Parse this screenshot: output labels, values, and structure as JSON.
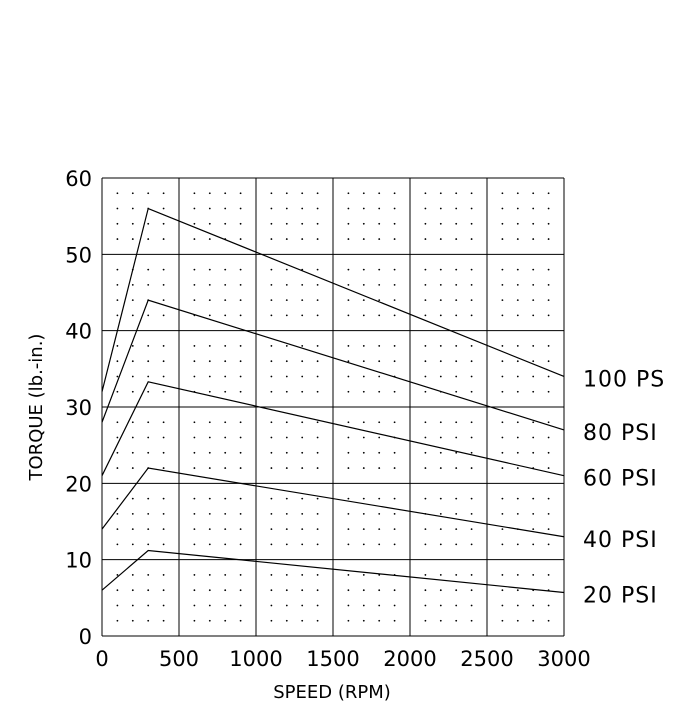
{
  "chart_data": {
    "type": "line",
    "title": "",
    "xlabel": "SPEED (RPM)",
    "ylabel": "TORQUE (lb.-in.)",
    "xlim": [
      0,
      3000
    ],
    "ylim": [
      0,
      60
    ],
    "xticks": [
      "0",
      "500",
      "1000",
      "1500",
      "2000",
      "2500",
      "3000"
    ],
    "yticks": [
      "0",
      "10",
      "20",
      "30",
      "40",
      "50",
      "60"
    ],
    "grid": true,
    "minor_grid": "dotted",
    "legend": "right-edge labels",
    "series": [
      {
        "name": "100 PS",
        "x": [
          0,
          300,
          3000
        ],
        "y": [
          32,
          56,
          34
        ]
      },
      {
        "name": "80 PSI",
        "x": [
          0,
          300,
          3000
        ],
        "y": [
          28,
          44,
          27
        ]
      },
      {
        "name": "60 PSI",
        "x": [
          0,
          300,
          3000
        ],
        "y": [
          21,
          33.3,
          21
        ]
      },
      {
        "name": "40 PSI",
        "x": [
          0,
          300,
          3000
        ],
        "y": [
          14,
          22,
          13
        ]
      },
      {
        "name": "20 PSI",
        "x": [
          0,
          300,
          3000
        ],
        "y": [
          6,
          11.2,
          5.7
        ]
      }
    ],
    "colors": {
      "line": "#000000",
      "grid": "#000000",
      "background": "#ffffff"
    }
  }
}
